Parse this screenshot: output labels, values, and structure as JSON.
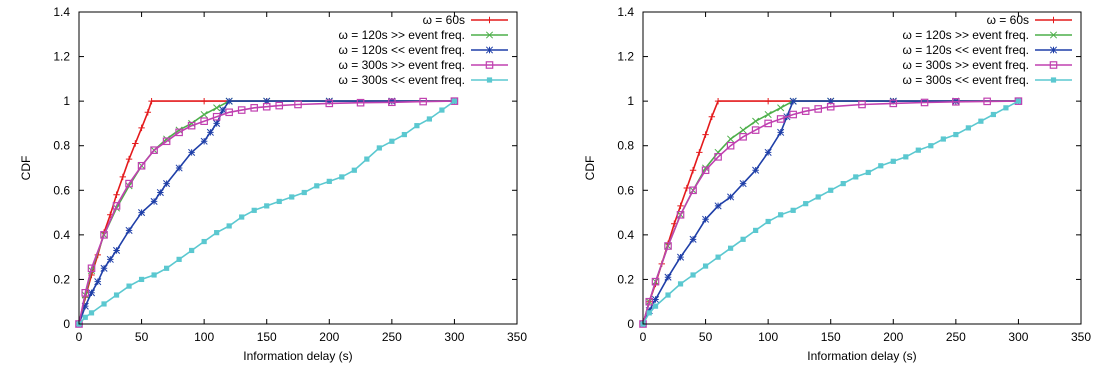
{
  "chart_data": [
    {
      "type": "line",
      "title": "",
      "xlabel": "Information delay (s)",
      "ylabel": "CDF",
      "xlim": [
        0,
        350
      ],
      "ylim": [
        0,
        1.4
      ],
      "xticks": [
        "0",
        "50",
        "100",
        "150",
        "200",
        "250",
        "300",
        "350"
      ],
      "yticks": [
        "0",
        "0.2",
        "0.4",
        "0.6",
        "0.8",
        "1",
        "1.2",
        "1.4"
      ],
      "grid": false,
      "legend_position": "top-right",
      "series": [
        {
          "name": "ω = 60s",
          "color": "#e41a1c",
          "marker": "plus",
          "x": [
            0,
            5,
            10,
            15,
            20,
            25,
            30,
            35,
            40,
            45,
            50,
            55,
            58,
            100,
            150,
            200,
            250,
            300
          ],
          "y": [
            0,
            0.12,
            0.22,
            0.31,
            0.41,
            0.49,
            0.58,
            0.66,
            0.74,
            0.81,
            0.88,
            0.95,
            1.0,
            1.0,
            1.0,
            1.0,
            1.0,
            1.0
          ]
        },
        {
          "name": "ω = 120s >> event freq.",
          "color": "#4daf4a",
          "marker": "cross",
          "x": [
            0,
            5,
            10,
            20,
            30,
            40,
            50,
            60,
            70,
            80,
            90,
            100,
            110,
            120,
            150,
            200,
            250,
            300
          ],
          "y": [
            0,
            0.13,
            0.24,
            0.4,
            0.52,
            0.62,
            0.71,
            0.78,
            0.83,
            0.87,
            0.9,
            0.94,
            0.97,
            1.0,
            1.0,
            1.0,
            1.0,
            1.0
          ]
        },
        {
          "name": "ω = 120s << event freq.",
          "color": "#1f3fa8",
          "marker": "asterisk",
          "x": [
            0,
            5,
            10,
            15,
            20,
            25,
            30,
            40,
            50,
            60,
            65,
            70,
            80,
            90,
            100,
            105,
            110,
            115,
            120,
            150,
            200,
            250,
            300
          ],
          "y": [
            0,
            0.08,
            0.14,
            0.19,
            0.25,
            0.29,
            0.33,
            0.42,
            0.5,
            0.55,
            0.59,
            0.63,
            0.7,
            0.77,
            0.82,
            0.86,
            0.9,
            0.96,
            1.0,
            1.0,
            1.0,
            1.0,
            1.0
          ]
        },
        {
          "name": "ω = 300s >> event freq.",
          "color": "#c040b0",
          "marker": "square",
          "x": [
            0,
            5,
            10,
            20,
            30,
            40,
            50,
            60,
            70,
            80,
            90,
            100,
            110,
            120,
            130,
            140,
            150,
            160,
            175,
            200,
            225,
            250,
            275,
            300
          ],
          "y": [
            0,
            0.14,
            0.25,
            0.4,
            0.53,
            0.63,
            0.71,
            0.78,
            0.82,
            0.86,
            0.89,
            0.91,
            0.93,
            0.95,
            0.96,
            0.97,
            0.975,
            0.98,
            0.985,
            0.99,
            0.993,
            0.995,
            0.998,
            1.0
          ]
        },
        {
          "name": "ω = 300s << event freq.",
          "color": "#5bc8d0",
          "marker": "filled-square",
          "x": [
            0,
            5,
            10,
            20,
            30,
            40,
            50,
            60,
            70,
            80,
            90,
            100,
            110,
            120,
            130,
            140,
            150,
            160,
            170,
            180,
            190,
            200,
            210,
            220,
            230,
            240,
            250,
            260,
            270,
            280,
            290,
            300
          ],
          "y": [
            0,
            0.03,
            0.05,
            0.09,
            0.13,
            0.17,
            0.2,
            0.22,
            0.25,
            0.29,
            0.33,
            0.37,
            0.41,
            0.44,
            0.48,
            0.51,
            0.53,
            0.55,
            0.57,
            0.59,
            0.62,
            0.64,
            0.66,
            0.69,
            0.74,
            0.79,
            0.82,
            0.85,
            0.89,
            0.92,
            0.96,
            1.0
          ]
        }
      ]
    },
    {
      "type": "line",
      "title": "",
      "xlabel": "Information delay (s)",
      "ylabel": "CDF",
      "xlim": [
        0,
        350
      ],
      "ylim": [
        0,
        1.4
      ],
      "xticks": [
        "0",
        "50",
        "100",
        "150",
        "200",
        "250",
        "300",
        "350"
      ],
      "yticks": [
        "0",
        "0.2",
        "0.4",
        "0.6",
        "0.8",
        "1",
        "1.2",
        "1.4"
      ],
      "grid": false,
      "legend_position": "top-right",
      "series": [
        {
          "name": "ω = 60s",
          "color": "#e41a1c",
          "marker": "plus",
          "x": [
            0,
            5,
            10,
            15,
            20,
            25,
            30,
            35,
            40,
            45,
            50,
            55,
            60,
            100,
            150,
            200,
            250,
            300
          ],
          "y": [
            0,
            0.1,
            0.18,
            0.27,
            0.36,
            0.45,
            0.53,
            0.61,
            0.69,
            0.77,
            0.85,
            0.93,
            1.0,
            1.0,
            1.0,
            1.0,
            1.0,
            1.0
          ]
        },
        {
          "name": "ω = 120s >> event freq.",
          "color": "#4daf4a",
          "marker": "cross",
          "x": [
            0,
            5,
            10,
            20,
            30,
            40,
            50,
            60,
            70,
            80,
            90,
            100,
            110,
            120,
            150,
            200,
            250,
            300
          ],
          "y": [
            0,
            0.1,
            0.19,
            0.35,
            0.49,
            0.6,
            0.7,
            0.77,
            0.83,
            0.87,
            0.91,
            0.94,
            0.97,
            1.0,
            1.0,
            1.0,
            1.0,
            1.0
          ]
        },
        {
          "name": "ω = 120s << event freq.",
          "color": "#1f3fa8",
          "marker": "asterisk",
          "x": [
            0,
            5,
            10,
            20,
            30,
            40,
            50,
            60,
            70,
            80,
            90,
            100,
            110,
            115,
            120,
            150,
            200,
            250,
            300
          ],
          "y": [
            0,
            0.06,
            0.11,
            0.21,
            0.3,
            0.38,
            0.47,
            0.53,
            0.57,
            0.63,
            0.69,
            0.77,
            0.86,
            0.93,
            1.0,
            1.0,
            1.0,
            1.0,
            1.0
          ]
        },
        {
          "name": "ω = 300s >> event freq.",
          "color": "#c040b0",
          "marker": "square",
          "x": [
            0,
            5,
            10,
            20,
            30,
            40,
            50,
            60,
            70,
            80,
            90,
            100,
            110,
            120,
            130,
            140,
            150,
            175,
            200,
            225,
            250,
            275,
            300
          ],
          "y": [
            0,
            0.1,
            0.19,
            0.35,
            0.49,
            0.6,
            0.69,
            0.75,
            0.8,
            0.84,
            0.87,
            0.9,
            0.92,
            0.94,
            0.955,
            0.965,
            0.975,
            0.985,
            0.99,
            0.994,
            0.997,
            0.999,
            1.0
          ]
        },
        {
          "name": "ω = 300s << event freq.",
          "color": "#5bc8d0",
          "marker": "filled-square",
          "x": [
            0,
            5,
            10,
            20,
            30,
            40,
            50,
            60,
            70,
            80,
            90,
            100,
            110,
            120,
            130,
            140,
            150,
            160,
            170,
            180,
            190,
            200,
            210,
            220,
            230,
            240,
            250,
            260,
            270,
            280,
            290,
            300
          ],
          "y": [
            0,
            0.05,
            0.08,
            0.13,
            0.18,
            0.22,
            0.26,
            0.3,
            0.34,
            0.38,
            0.42,
            0.46,
            0.49,
            0.51,
            0.54,
            0.57,
            0.6,
            0.63,
            0.66,
            0.68,
            0.71,
            0.73,
            0.75,
            0.78,
            0.8,
            0.83,
            0.85,
            0.88,
            0.91,
            0.94,
            0.97,
            1.0
          ]
        }
      ]
    }
  ]
}
